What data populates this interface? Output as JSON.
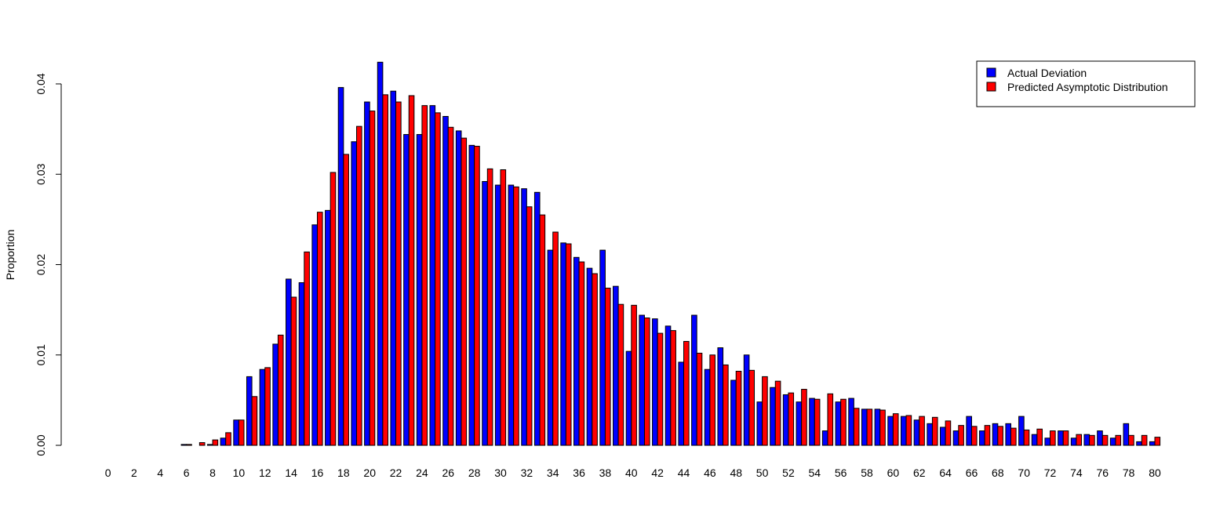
{
  "chart_data": {
    "type": "bar",
    "title": "",
    "xlabel": "",
    "ylabel": "Proportion",
    "ylim": [
      0,
      0.0425
    ],
    "grid": false,
    "legend_position": "top-right",
    "categories": [
      0,
      1,
      2,
      3,
      4,
      5,
      6,
      7,
      8,
      9,
      10,
      11,
      12,
      13,
      14,
      15,
      16,
      17,
      18,
      19,
      20,
      21,
      22,
      23,
      24,
      25,
      26,
      27,
      28,
      29,
      30,
      31,
      32,
      33,
      34,
      35,
      36,
      37,
      38,
      39,
      40,
      41,
      42,
      43,
      44,
      45,
      46,
      47,
      48,
      49,
      50,
      51,
      52,
      53,
      54,
      55,
      56,
      57,
      58,
      59,
      60,
      61,
      62,
      63,
      64,
      65,
      66,
      67,
      68,
      69,
      70,
      71,
      72,
      73,
      74,
      75,
      76,
      77,
      78,
      79,
      80
    ],
    "x_tick_labels": [
      "0",
      "2",
      "4",
      "6",
      "8",
      "10",
      "12",
      "14",
      "16",
      "18",
      "20",
      "22",
      "24",
      "26",
      "28",
      "30",
      "32",
      "34",
      "36",
      "38",
      "40",
      "42",
      "44",
      "46",
      "48",
      "50",
      "52",
      "54",
      "56",
      "58",
      "60",
      "62",
      "64",
      "66",
      "68",
      "70",
      "72",
      "74",
      "76",
      "78",
      "80"
    ],
    "y_tick_labels": [
      "0.00",
      "0.01",
      "0.02",
      "0.03",
      "0.04"
    ],
    "y_ticks": [
      0,
      0.01,
      0.02,
      0.03,
      0.04
    ],
    "series": [
      {
        "name": "Actual Deviation",
        "color": "#0000ff",
        "values": [
          0,
          0,
          0,
          0,
          0,
          0,
          0.0001,
          0,
          0.0001,
          0.0008,
          0.0028,
          0.0076,
          0.0084,
          0.0112,
          0.0184,
          0.018,
          0.0244,
          0.026,
          0.0396,
          0.0336,
          0.038,
          0.0424,
          0.0392,
          0.0344,
          0.0344,
          0.0376,
          0.0364,
          0.0348,
          0.0332,
          0.0292,
          0.0288,
          0.0288,
          0.0284,
          0.028,
          0.0216,
          0.0224,
          0.0208,
          0.0196,
          0.0216,
          0.0176,
          0.0104,
          0.0144,
          0.014,
          0.0132,
          0.0092,
          0.0144,
          0.0084,
          0.0108,
          0.0072,
          0.01,
          0.0048,
          0.0064,
          0.0056,
          0.0048,
          0.0052,
          0.0016,
          0.0048,
          0.0052,
          0.004,
          0.004,
          0.0032,
          0.0032,
          0.0028,
          0.0024,
          0.002,
          0.0016,
          0.0032,
          0.0016,
          0.0024,
          0.0024,
          0.0032,
          0.0012,
          0.0008,
          0.0016,
          0.0008,
          0.0012,
          0.0016,
          0.0008,
          0.0024,
          0.0004,
          0.0004
        ]
      },
      {
        "name": "Predicted Asymptotic Distribution",
        "color": "#ff0000",
        "values": [
          0,
          0,
          0,
          0,
          0,
          0,
          0.0001,
          0.0003,
          0.0006,
          0.0014,
          0.0028,
          0.0054,
          0.0086,
          0.0122,
          0.0164,
          0.0214,
          0.0258,
          0.0302,
          0.0322,
          0.0353,
          0.037,
          0.0388,
          0.038,
          0.0387,
          0.0376,
          0.0368,
          0.0352,
          0.034,
          0.0331,
          0.0306,
          0.0305,
          0.0286,
          0.0264,
          0.0255,
          0.0236,
          0.0223,
          0.0203,
          0.019,
          0.0174,
          0.0156,
          0.0155,
          0.0141,
          0.0124,
          0.0127,
          0.0115,
          0.0102,
          0.01,
          0.0089,
          0.0082,
          0.0083,
          0.0076,
          0.0071,
          0.0058,
          0.0062,
          0.0051,
          0.0057,
          0.0051,
          0.0041,
          0.004,
          0.0039,
          0.0035,
          0.0033,
          0.0032,
          0.0031,
          0.0027,
          0.0022,
          0.0021,
          0.0022,
          0.0021,
          0.0019,
          0.0017,
          0.0018,
          0.0016,
          0.0016,
          0.0012,
          0.0011,
          0.0011,
          0.0011,
          0.0011,
          0.0011,
          0.0009
        ]
      }
    ]
  }
}
